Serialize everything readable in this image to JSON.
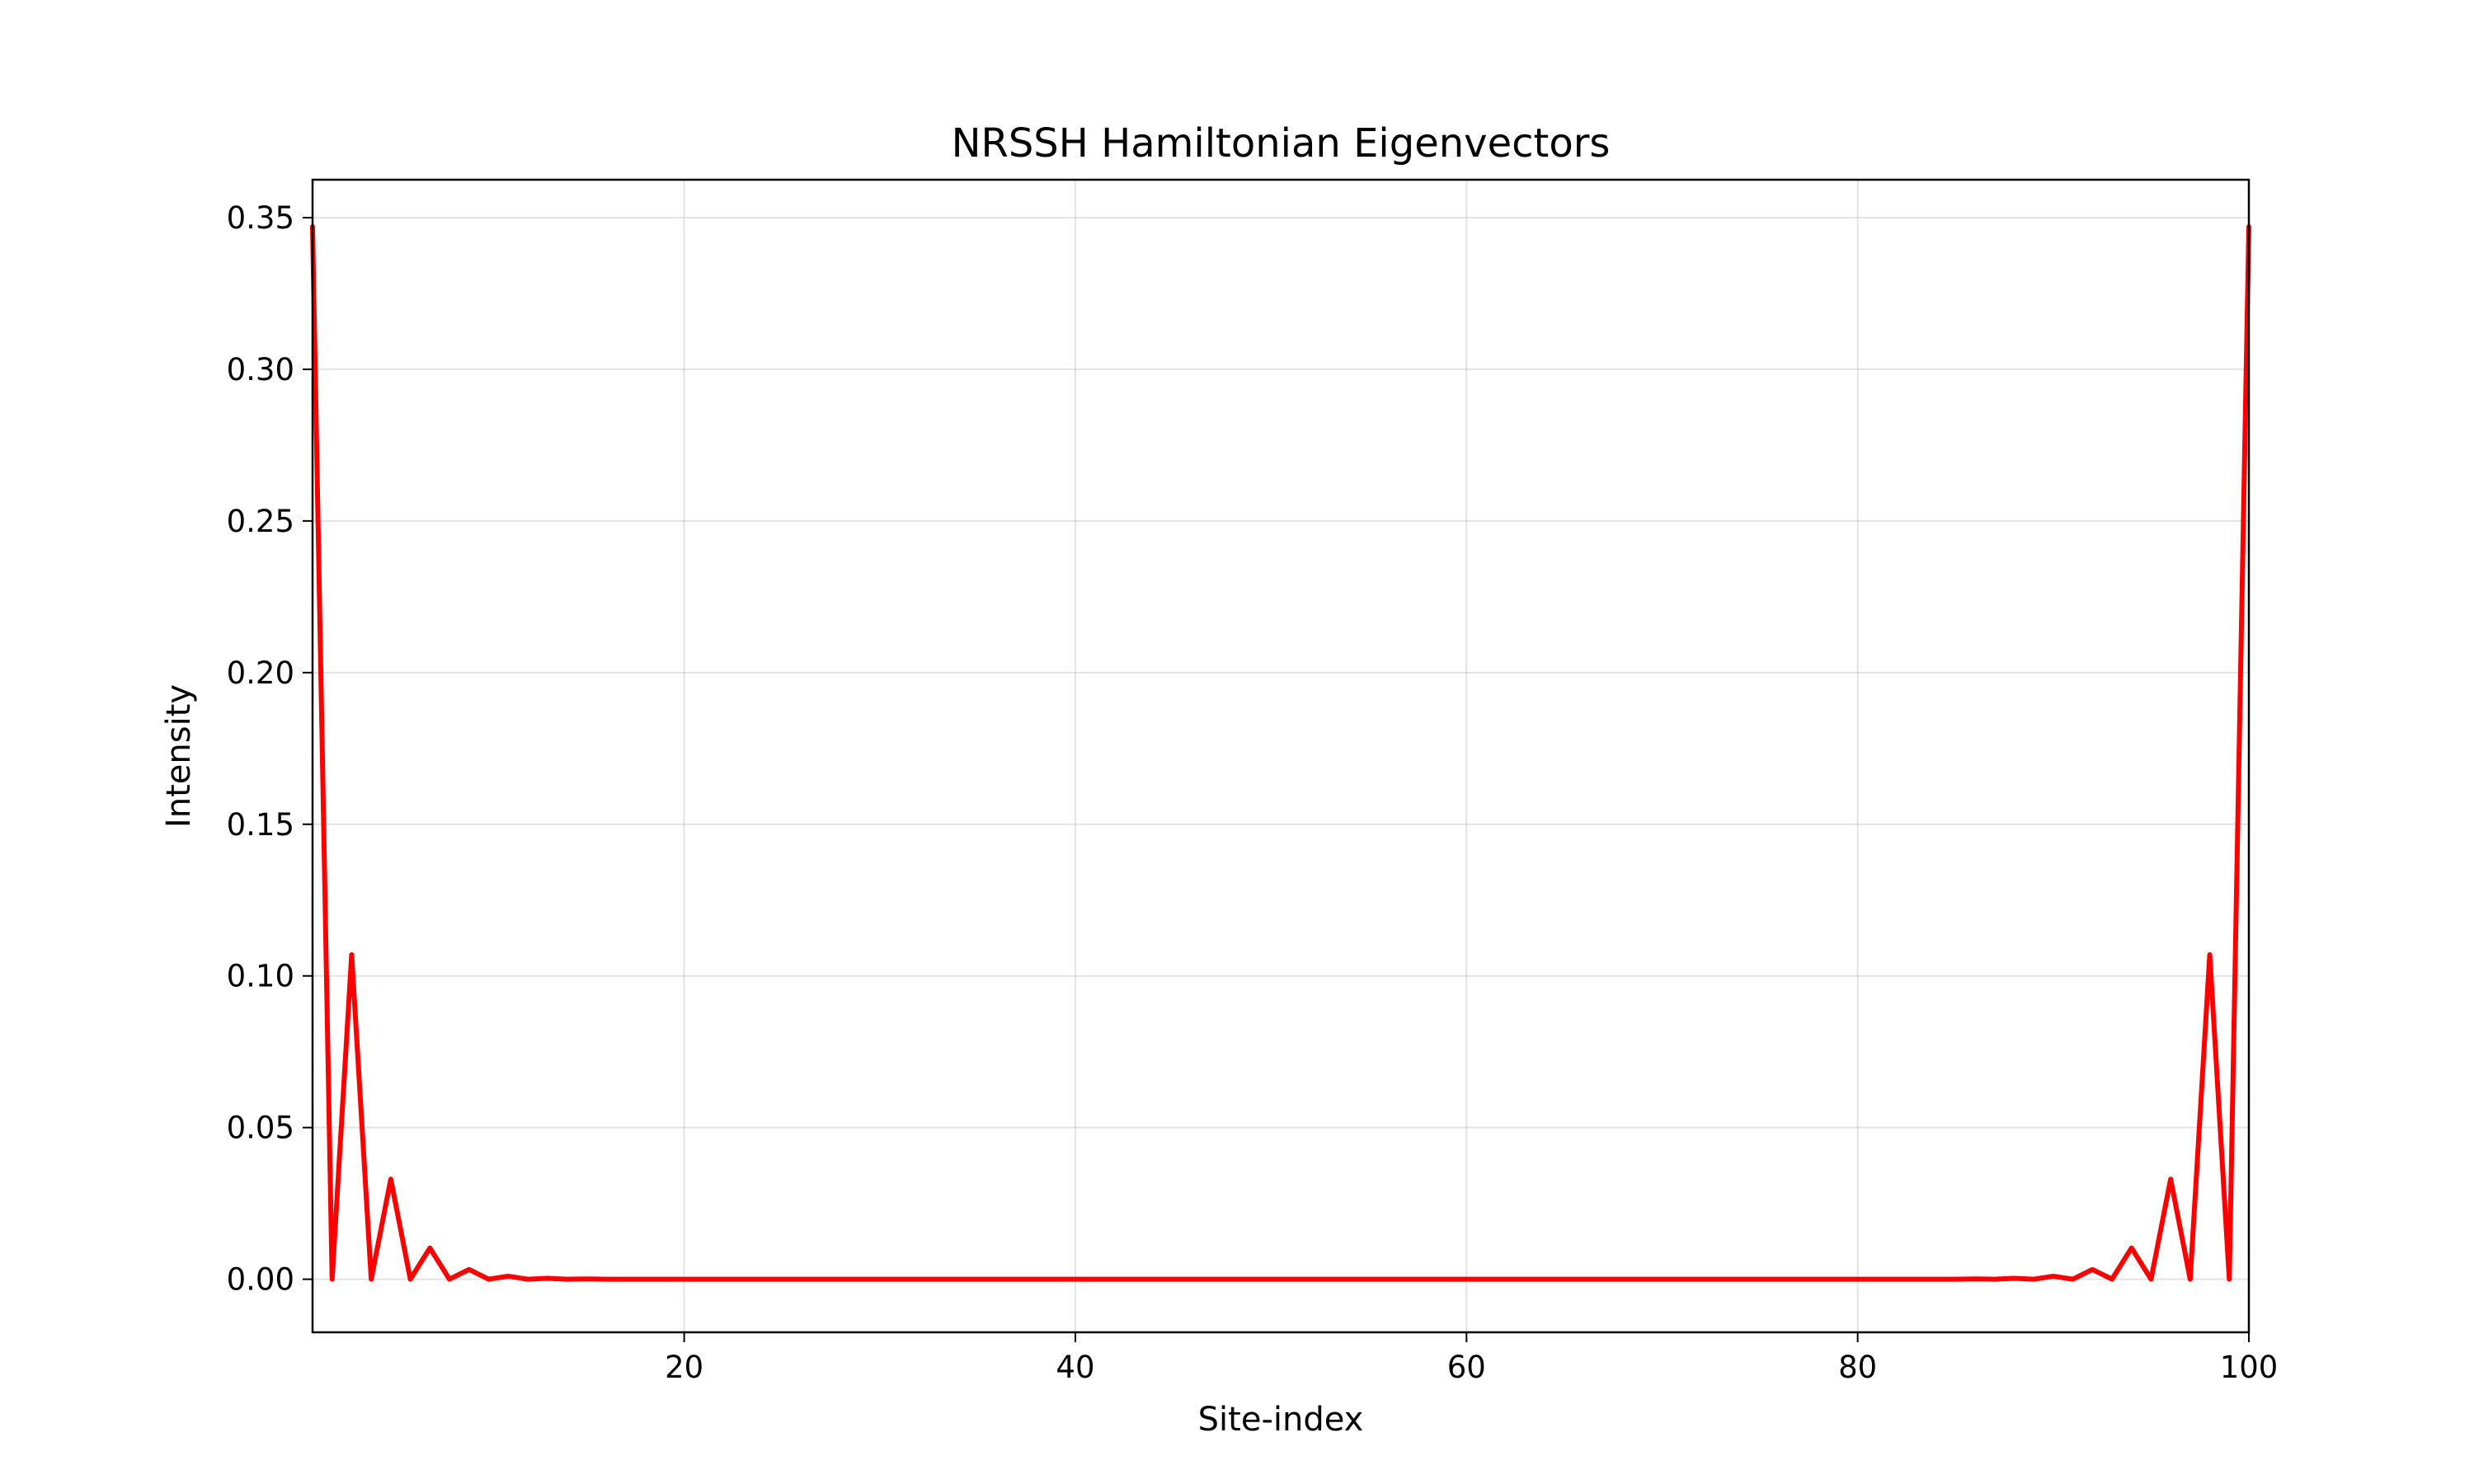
{
  "chart_data": {
    "type": "line",
    "title": "NRSSH Hamiltonian Eigenvectors",
    "xlabel": "Site-index",
    "ylabel": "Intensity",
    "xlim": [
      1,
      100
    ],
    "ylim": [
      -0.0175,
      0.3625
    ],
    "xticks": [
      20,
      40,
      60,
      80,
      100
    ],
    "xtick_labels": [
      "20",
      "40",
      "60",
      "80",
      "100"
    ],
    "yticks": [
      0.0,
      0.05,
      0.1,
      0.15,
      0.2,
      0.25,
      0.3,
      0.35
    ],
    "ytick_labels": [
      "0.00",
      "0.05",
      "0.10",
      "0.15",
      "0.20",
      "0.25",
      "0.30",
      "0.35"
    ],
    "grid": true,
    "colors": {
      "series": "#ff0000"
    },
    "series": [
      {
        "x": [
          1,
          2,
          3,
          4,
          5,
          6,
          7,
          8,
          9,
          10,
          11,
          12,
          13,
          14,
          15,
          16,
          17,
          18,
          19,
          20,
          21,
          22,
          23,
          24,
          25,
          26,
          27,
          28,
          29,
          30,
          31,
          32,
          33,
          34,
          35,
          36,
          37,
          38,
          39,
          40,
          41,
          42,
          43,
          44,
          45,
          46,
          47,
          48,
          49,
          50,
          51,
          52,
          53,
          54,
          55,
          56,
          57,
          58,
          59,
          60,
          61,
          62,
          63,
          64,
          65,
          66,
          67,
          68,
          69,
          70,
          71,
          72,
          73,
          74,
          75,
          76,
          77,
          78,
          79,
          80,
          81,
          82,
          83,
          84,
          85,
          86,
          87,
          88,
          89,
          90,
          91,
          92,
          93,
          94,
          95,
          96,
          97,
          98,
          99,
          100
        ],
        "values": [
          0.347,
          0,
          0.107,
          0,
          0.033,
          0,
          0.0103,
          0,
          0.0032,
          0,
          0.001,
          0,
          0.0003,
          0,
          0.0001,
          0,
          0,
          0,
          0,
          0,
          0,
          0,
          0,
          0,
          0,
          0,
          0,
          0,
          0,
          0,
          0,
          0,
          0,
          0,
          0,
          0,
          0,
          0,
          0,
          0,
          0,
          0,
          0,
          0,
          0,
          0,
          0,
          0,
          0,
          0,
          0,
          0,
          0,
          0,
          0,
          0,
          0,
          0,
          0,
          0,
          0,
          0,
          0,
          0,
          0,
          0,
          0,
          0,
          0,
          0,
          0,
          0,
          0,
          0,
          0,
          0,
          0,
          0,
          0,
          0,
          0,
          0,
          0,
          0,
          0,
          0.0001,
          0,
          0.0003,
          0,
          0.001,
          0,
          0.0032,
          0,
          0.0103,
          0,
          0.033,
          0,
          0.107,
          0,
          0.347
        ]
      }
    ]
  }
}
